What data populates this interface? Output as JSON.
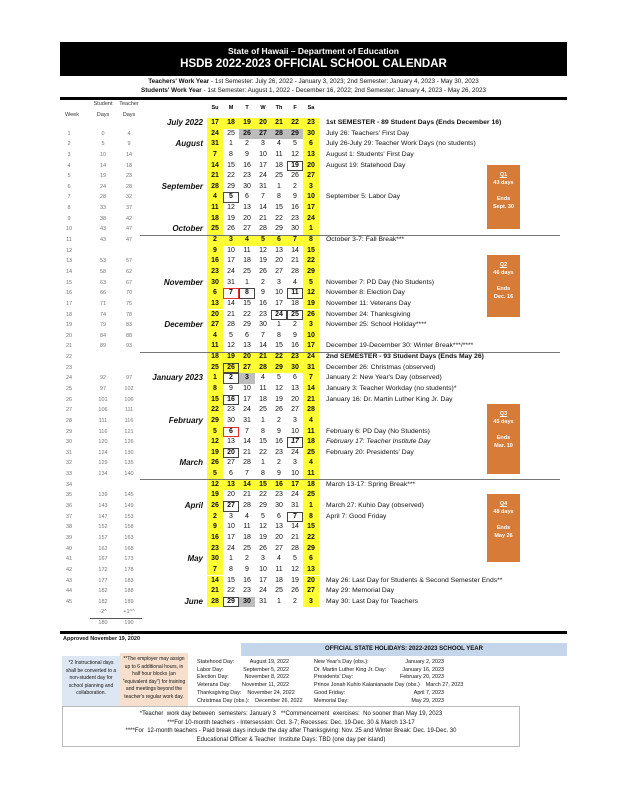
{
  "header": {
    "agency": "State of Hawaii – Department of Education",
    "title": "HSDB 2022-2023 OFFICIAL SCHOOL CALENDAR"
  },
  "work_years": {
    "teachers_label": "Teachers' Work Year",
    "teachers_text": " - 1st Semester: July 26, 2022 - January 3, 2023; 2nd Semester: January 4, 2023 - May 30, 2023",
    "students_label": "Students' Work Year",
    "students_text": " - 1st Semester: August 1, 2022 - December 16, 2022; 2nd Semester: January 4, 2023 - May 26, 2023"
  },
  "columns": {
    "student": "Student",
    "teacher": "Teacher",
    "week": "Week",
    "days1": "Days",
    "days2": "Days",
    "weekdays": [
      "Su",
      "M",
      "T",
      "W",
      "Th",
      "F",
      "Sa"
    ]
  },
  "rows": [
    {
      "w": "",
      "s": "",
      "t": "",
      "m": "July 2022",
      "d": [
        17,
        18,
        19,
        20,
        21,
        22,
        23
      ],
      "all": "yel",
      "note": "1st SEMESTER - 89 Student Days (Ends December 16)",
      "ns": "b"
    },
    {
      "w": "1",
      "s": "0",
      "t": "4",
      "m": "",
      "d": [
        24,
        25,
        26,
        27,
        28,
        29,
        30
      ],
      "marks": {
        "2": "gray",
        "3": "gray",
        "4": "gray",
        "5": "gray"
      },
      "note": "July 26: Teachers' First Day"
    },
    {
      "w": "2",
      "s": "5",
      "t": "9",
      "m": "August",
      "d": [
        31,
        1,
        2,
        3,
        4,
        5,
        6
      ],
      "note": "July 26-July 29: Teacher Work Days (no students)"
    },
    {
      "w": "3",
      "s": "10",
      "t": "14",
      "m": "",
      "d": [
        7,
        8,
        9,
        10,
        11,
        12,
        13
      ],
      "note": "August 1: Students' First Day"
    },
    {
      "w": "4",
      "s": "14",
      "t": "18",
      "m": "",
      "d": [
        14,
        15,
        16,
        17,
        18,
        19,
        20
      ],
      "marks": {
        "5": "box"
      },
      "note": "August 19: Statehood Day"
    },
    {
      "w": "5",
      "s": "19",
      "t": "23",
      "m": "",
      "d": [
        21,
        22,
        23,
        24,
        25,
        26,
        27
      ]
    },
    {
      "w": "6",
      "s": "24",
      "t": "28",
      "m": "September",
      "d": [
        28,
        29,
        30,
        31,
        1,
        2,
        3
      ]
    },
    {
      "w": "7",
      "s": "28",
      "t": "32",
      "m": "",
      "d": [
        4,
        5,
        6,
        7,
        8,
        9,
        10
      ],
      "marks": {
        "1": "box"
      },
      "note": "September 5: Labor Day"
    },
    {
      "w": "8",
      "s": "33",
      "t": "37",
      "m": "",
      "d": [
        11,
        12,
        13,
        14,
        15,
        16,
        17
      ]
    },
    {
      "w": "9",
      "s": "38",
      "t": "42",
      "m": "",
      "d": [
        18,
        19,
        20,
        21,
        22,
        23,
        24
      ]
    },
    {
      "w": "10",
      "s": "43",
      "t": "47",
      "m": "October",
      "d": [
        25,
        26,
        27,
        28,
        29,
        30,
        1
      ]
    },
    {
      "w": "11",
      "s": "43",
      "t": "47",
      "m": "",
      "d": [
        2,
        3,
        4,
        5,
        6,
        7,
        8
      ],
      "all": "yel",
      "note": "October 3-7: Fall Break***",
      "sep": true
    },
    {
      "w": "12",
      "s": "",
      "t": "",
      "m": "",
      "d": [
        9,
        10,
        11,
        12,
        13,
        14,
        15
      ]
    },
    {
      "w": "13",
      "s": "53",
      "t": "57",
      "m": "",
      "d": [
        16,
        17,
        18,
        19,
        20,
        21,
        22
      ]
    },
    {
      "w": "14",
      "s": "58",
      "t": "62",
      "m": "",
      "d": [
        23,
        24,
        25,
        26,
        27,
        28,
        29
      ]
    },
    {
      "w": "15",
      "s": "63",
      "t": "67",
      "m": "November",
      "d": [
        30,
        31,
        1,
        2,
        3,
        4,
        5
      ],
      "note": "November 7: PD Day (No Students)"
    },
    {
      "w": "16",
      "s": "66",
      "t": "70",
      "m": "",
      "d": [
        6,
        7,
        8,
        9,
        10,
        11,
        12
      ],
      "marks": {
        "1": "red",
        "2": "box",
        "5": "box"
      },
      "note": "November 8: Election Day"
    },
    {
      "w": "17",
      "s": "71",
      "t": "75",
      "m": "",
      "d": [
        13,
        14,
        15,
        16,
        17,
        18,
        19
      ],
      "note": "November 11: Veterans Day"
    },
    {
      "w": "18",
      "s": "74",
      "t": "78",
      "m": "",
      "d": [
        20,
        21,
        22,
        23,
        24,
        25,
        26
      ],
      "marks": {
        "4": "box",
        "5": "box"
      },
      "note": "November 24: Thanksgiving"
    },
    {
      "w": "19",
      "s": "79",
      "t": "83",
      "m": "December",
      "d": [
        27,
        28,
        29,
        30,
        1,
        2,
        3
      ],
      "note": "November 25: School Holiday****"
    },
    {
      "w": "20",
      "s": "84",
      "t": "88",
      "m": "",
      "d": [
        4,
        5,
        6,
        7,
        8,
        9,
        10
      ]
    },
    {
      "w": "21",
      "s": "89",
      "t": "93",
      "m": "",
      "d": [
        11,
        12,
        13,
        14,
        15,
        16,
        17
      ],
      "note": "December 19-December 30: Winter Break***/****"
    },
    {
      "w": "22",
      "s": "",
      "t": "",
      "m": "",
      "d": [
        18,
        19,
        20,
        21,
        22,
        23,
        24
      ],
      "all": "yel",
      "note": "2nd SEMESTER - 93 Student Days (Ends May 26)",
      "ns": "b",
      "sep": true
    },
    {
      "w": "23",
      "s": "",
      "t": "",
      "m": "",
      "d": [
        25,
        26,
        27,
        28,
        29,
        30,
        31
      ],
      "all": "yel",
      "marks": {
        "1": "box"
      },
      "note": "December 26: Christmas (observed)"
    },
    {
      "w": "24",
      "s": "92",
      "t": "97",
      "m": "January 2023",
      "d": [
        1,
        2,
        3,
        4,
        5,
        6,
        7
      ],
      "marks": {
        "1": "box",
        "2": "gray"
      },
      "note": "January 2: New Year's Day (observed)"
    },
    {
      "w": "25",
      "s": "97",
      "t": "102",
      "m": "",
      "d": [
        8,
        9,
        10,
        11,
        12,
        13,
        14
      ],
      "note": "January 3: Teacher Workday (no students)*"
    },
    {
      "w": "26",
      "s": "101",
      "t": "106",
      "m": "",
      "d": [
        15,
        16,
        17,
        18,
        19,
        20,
        21
      ],
      "marks": {
        "1": "box"
      },
      "note": "January 16: Dr. Martin Luther King Jr. Day"
    },
    {
      "w": "27",
      "s": "106",
      "t": "111",
      "m": "",
      "d": [
        22,
        23,
        24,
        25,
        26,
        27,
        28
      ]
    },
    {
      "w": "28",
      "s": "111",
      "t": "116",
      "m": "February",
      "d": [
        29,
        30,
        31,
        1,
        2,
        3,
        4
      ]
    },
    {
      "w": "29",
      "s": "116",
      "t": "121",
      "m": "",
      "d": [
        5,
        6,
        7,
        8,
        9,
        10,
        11
      ],
      "marks": {
        "1": "red"
      },
      "note": "February 6: PD Day (No Students)"
    },
    {
      "w": "30",
      "s": "120",
      "t": "126",
      "m": "",
      "d": [
        12,
        13,
        14,
        15,
        16,
        17,
        18
      ],
      "marks": {
        "5": "box"
      },
      "note": "February 17: Teacher Institute Day",
      "ns": "i"
    },
    {
      "w": "31",
      "s": "124",
      "t": "130",
      "m": "",
      "d": [
        19,
        20,
        21,
        22,
        23,
        24,
        25
      ],
      "marks": {
        "1": "box"
      },
      "note": "February 20: Presidents' Day"
    },
    {
      "w": "32",
      "s": "129",
      "t": "135",
      "m": "March",
      "d": [
        26,
        27,
        28,
        1,
        2,
        3,
        4
      ]
    },
    {
      "w": "33",
      "s": "134",
      "t": "140",
      "m": "",
      "d": [
        5,
        6,
        7,
        8,
        9,
        10,
        11
      ]
    },
    {
      "w": "34",
      "s": "",
      "t": "",
      "m": "",
      "d": [
        12,
        13,
        14,
        15,
        16,
        17,
        18
      ],
      "all": "yel",
      "note": "March 13-17: Spring Break***",
      "sep": true
    },
    {
      "w": "35",
      "s": "139",
      "t": "145",
      "m": "",
      "d": [
        19,
        20,
        21,
        22,
        23,
        24,
        25
      ]
    },
    {
      "w": "36",
      "s": "143",
      "t": "149",
      "m": "April",
      "d": [
        26,
        27,
        28,
        29,
        30,
        31,
        1
      ],
      "marks": {
        "1": "box"
      },
      "note": "March 27: Kuhio Day (observed)"
    },
    {
      "w": "37",
      "s": "147",
      "t": "153",
      "m": "",
      "d": [
        2,
        3,
        4,
        5,
        6,
        7,
        8
      ],
      "marks": {
        "5": "box"
      },
      "note": "April 7: Good Friday"
    },
    {
      "w": "38",
      "s": "152",
      "t": "158",
      "m": "",
      "d": [
        9,
        10,
        11,
        12,
        13,
        14,
        15
      ]
    },
    {
      "w": "39",
      "s": "157",
      "t": "163",
      "m": "",
      "d": [
        16,
        17,
        18,
        19,
        20,
        21,
        22
      ]
    },
    {
      "w": "40",
      "s": "162",
      "t": "168",
      "m": "",
      "d": [
        23,
        24,
        25,
        26,
        27,
        28,
        29
      ]
    },
    {
      "w": "41",
      "s": "167",
      "t": "173",
      "m": "May",
      "d": [
        30,
        1,
        2,
        3,
        4,
        5,
        6
      ]
    },
    {
      "w": "42",
      "s": "172",
      "t": "178",
      "m": "",
      "d": [
        7,
        8,
        9,
        10,
        11,
        12,
        13
      ]
    },
    {
      "w": "43",
      "s": "177",
      "t": "183",
      "m": "",
      "d": [
        14,
        15,
        16,
        17,
        18,
        19,
        20
      ],
      "note": "May 26: Last Day for Students & Second Semester Ends**"
    },
    {
      "w": "44",
      "s": "182",
      "t": "188",
      "m": "",
      "d": [
        21,
        22,
        23,
        24,
        25,
        26,
        27
      ],
      "note": "May 29: Memorial Day"
    },
    {
      "w": "45",
      "s": "182",
      "t": "189",
      "m": "June",
      "d": [
        28,
        29,
        30,
        31,
        1,
        2,
        3
      ],
      "marks": {
        "1": "box",
        "2": "gray"
      },
      "note": "May 30:  Last Day for Teachers"
    }
  ],
  "totals": [
    [
      "-2^",
      "+1^^"
    ],
    [
      "180",
      "190"
    ],
    [
      "180",
      "190"
    ]
  ],
  "quarters": [
    {
      "label": "Q1",
      "days": "43 days",
      "ends": "Ends",
      "date": "Sept. 30"
    },
    {
      "label": "Q2",
      "days": "46 days",
      "ends": "Ends",
      "date": "Dec. 16"
    },
    {
      "label": "Q3",
      "days": "45 days",
      "ends": "Ends",
      "date": "Mar. 10"
    },
    {
      "label": "Q4",
      "days": "48 days",
      "ends": "Ends",
      "date": "May 26"
    }
  ],
  "colors": {
    "weekend": "#ffff33",
    "quarter": "#d67b38",
    "holiday_header": "#c5d5ea",
    "note_blue": "#dde6f3",
    "note_peach": "#f6dfcc"
  },
  "footer": {
    "approved": "Approved November 19, 2020",
    "holidays_title": "OFFICIAL STATE HOLIDAYS:  2022-2023 SCHOOL YEAR",
    "note1": "*2 Instructional days shall be converted to a non-student day for school planning and collaboration.",
    "note2": "**The employer may assign up to 6 additional hours, in half hour blocks (an \"equivalent day\") for training and meetings beyond the teacher's regular work day.",
    "holidays_left": [
      [
        "Statehood Day:",
        "August 19, 2022"
      ],
      [
        "Labor Day:",
        "September 5, 2022"
      ],
      [
        "Election Day:",
        "November 8, 2022"
      ],
      [
        "Veterans Day:",
        "November 11, 2022"
      ],
      [
        "Thanksgiving Day:",
        "November 24, 2022"
      ],
      [
        "Christmas Day (obs.):",
        "December 26, 2022"
      ]
    ],
    "holidays_right": [
      [
        "New Year's Day (obs.):",
        "January 2, 2023"
      ],
      [
        "Dr. Martin Luther King Jr. Day:",
        "January 16, 2023"
      ],
      [
        "Presidents' Day:",
        "February 20, 2023"
      ],
      [
        "Prince Jonah Kuhio Kalanianaole Day (obs.)",
        "March 27, 2023"
      ],
      [
        "Good Friday:",
        "April 7, 2023"
      ],
      [
        "Memorial Day:",
        "May 29, 2023"
      ]
    ],
    "bottom": [
      "*Teacher  work day between  semesters: January 3   **Commencement  exercises:  No sooner than May 19, 2023",
      "***For 10-month teachers - Intersession: Oct. 3-7; Recesses: Dec. 19-Dec. 30 & March 13-17",
      "****For  12-month teachers - Paid break days include the day after Thanksgiving: Nov. 25 and Winter Break: Dec. 19-Dec. 30",
      "Educational Officer & Teacher  Institute Days: TBD (one day per island)"
    ]
  }
}
